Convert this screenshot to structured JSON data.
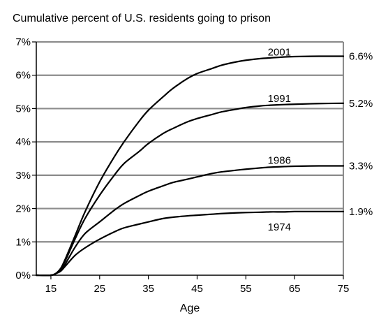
{
  "chart_data": {
    "type": "line",
    "title": "Cumulative percent of U.S. residents going to prison",
    "xlabel": "Age",
    "ylabel": "",
    "xlim": [
      12,
      75
    ],
    "ylim": [
      0,
      7
    ],
    "x_ticks": [
      15,
      25,
      35,
      45,
      55,
      65,
      75
    ],
    "x_tick_labels": [
      "15",
      "25",
      "35",
      "45",
      "55",
      "65",
      "75"
    ],
    "y_ticks": [
      0,
      1,
      2,
      3,
      4,
      5,
      6,
      7
    ],
    "y_tick_labels": [
      "0%",
      "1%",
      "2%",
      "3%",
      "4%",
      "5%",
      "6%",
      "7%"
    ],
    "grid": "horizontal",
    "series": [
      {
        "name": "2001",
        "end_label": "6.6%",
        "label_at": [
          59,
          6.7
        ],
        "x": [
          12,
          15,
          16,
          17,
          18,
          20,
          22,
          25,
          28,
          30,
          33,
          35,
          38,
          40,
          43,
          45,
          48,
          50,
          53,
          55,
          58,
          60,
          63,
          65,
          70,
          75
        ],
        "y": [
          0,
          0,
          0.05,
          0.2,
          0.5,
          1.2,
          1.9,
          2.8,
          3.55,
          4.0,
          4.6,
          4.95,
          5.35,
          5.6,
          5.9,
          6.05,
          6.2,
          6.3,
          6.4,
          6.45,
          6.5,
          6.52,
          6.55,
          6.56,
          6.57,
          6.57
        ]
      },
      {
        "name": "1991",
        "end_label": "5.2%",
        "label_at": [
          59,
          5.3
        ],
        "x": [
          12,
          15,
          16,
          17,
          18,
          20,
          22,
          25,
          28,
          30,
          33,
          35,
          38,
          40,
          43,
          45,
          48,
          50,
          53,
          55,
          58,
          60,
          63,
          65,
          70,
          75
        ],
        "y": [
          0,
          0,
          0.05,
          0.2,
          0.45,
          1.1,
          1.7,
          2.4,
          3.0,
          3.35,
          3.7,
          3.95,
          4.25,
          4.4,
          4.6,
          4.7,
          4.82,
          4.9,
          4.98,
          5.03,
          5.08,
          5.1,
          5.12,
          5.13,
          5.15,
          5.16
        ]
      },
      {
        "name": "1986",
        "end_label": "3.3%",
        "label_at": [
          59,
          3.45
        ],
        "x": [
          12,
          15,
          16,
          17,
          18,
          20,
          22,
          25,
          28,
          30,
          33,
          35,
          38,
          40,
          43,
          45,
          48,
          50,
          53,
          55,
          58,
          60,
          63,
          65,
          70,
          75
        ],
        "y": [
          0,
          0,
          0.05,
          0.15,
          0.35,
          0.85,
          1.25,
          1.6,
          1.95,
          2.15,
          2.38,
          2.52,
          2.68,
          2.78,
          2.88,
          2.95,
          3.05,
          3.1,
          3.15,
          3.18,
          3.22,
          3.24,
          3.26,
          3.27,
          3.28,
          3.28
        ]
      },
      {
        "name": "1974",
        "end_label": "1.9%",
        "label_at": [
          59,
          1.45
        ],
        "x": [
          12,
          15,
          16,
          17,
          18,
          20,
          22,
          25,
          28,
          30,
          33,
          35,
          38,
          40,
          43,
          45,
          48,
          50,
          53,
          55,
          58,
          60,
          63,
          65,
          70,
          75
        ],
        "y": [
          0,
          0,
          0.05,
          0.12,
          0.28,
          0.6,
          0.82,
          1.08,
          1.3,
          1.42,
          1.53,
          1.6,
          1.7,
          1.74,
          1.78,
          1.8,
          1.83,
          1.85,
          1.87,
          1.88,
          1.89,
          1.9,
          1.9,
          1.91,
          1.91,
          1.91
        ]
      }
    ]
  }
}
